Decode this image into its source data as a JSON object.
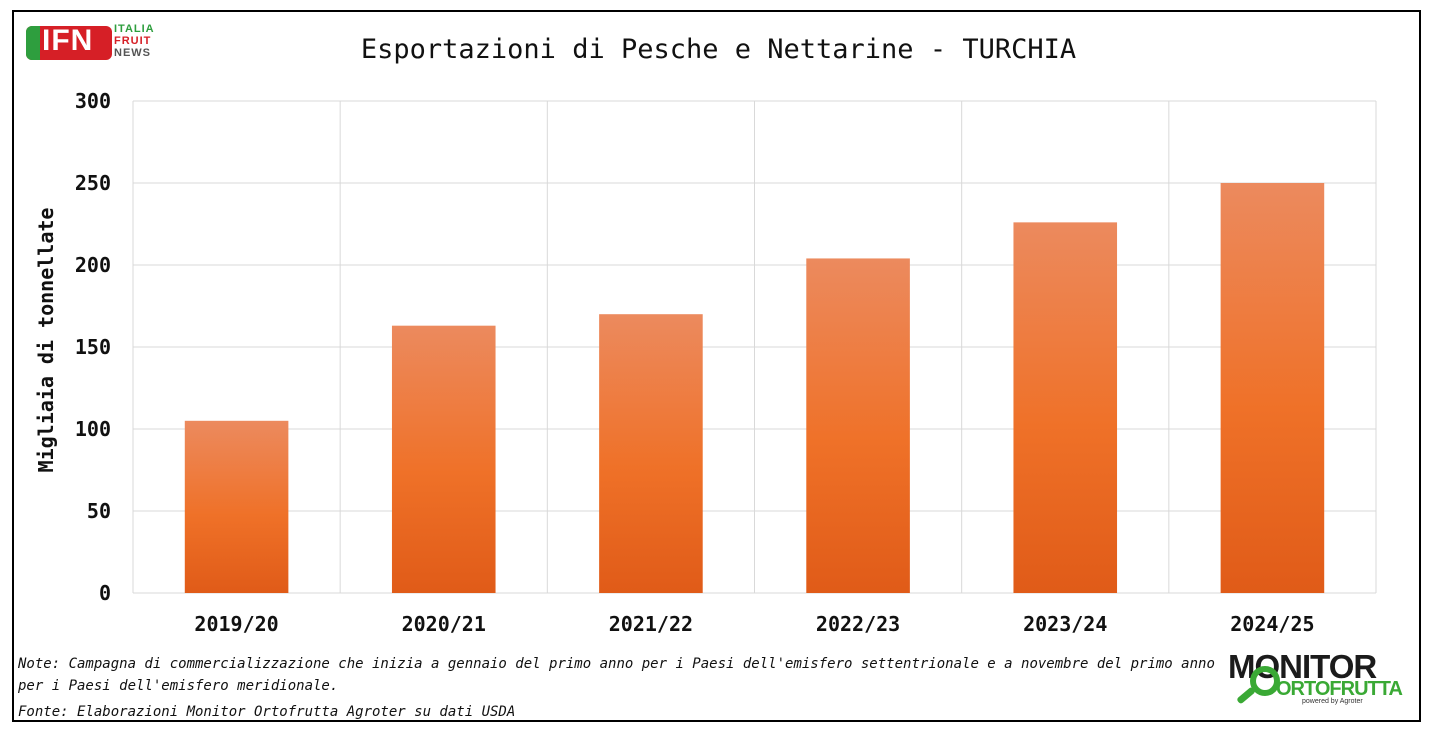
{
  "logo_left": {
    "main": "IFN",
    "line1": "ITALIA",
    "line2": "FRUIT",
    "line3": "NEWS"
  },
  "logo_right": {
    "line1": "MONITOR",
    "line2": "ORTOFRUTTA",
    "line3": "powered by Agroter"
  },
  "footer": {
    "note": "Note: Campagna di commercializzazione che inizia a gennaio del primo anno per i Paesi dell'emisfero settentrionale e a novembre del primo anno per i Paesi dell'emisfero meridionale.",
    "source": "Fonte: Elaborazioni Monitor Ortofrutta Agroter su dati USDA"
  },
  "colors": {
    "bar_top": "#ec8a5e",
    "bar_mid": "#ef7128",
    "bar_bottom": "#e05b18",
    "grid": "#d9d9d9",
    "frame": "#000000"
  },
  "chart_data": {
    "type": "bar",
    "title": "Esportazioni di Pesche e Nettarine - TURCHIA",
    "xlabel": "",
    "ylabel": "Migliaia di tonnellate",
    "categories": [
      "2019/20",
      "2020/21",
      "2021/22",
      "2022/23",
      "2023/24",
      "2024/25"
    ],
    "values": [
      105,
      163,
      170,
      204,
      226,
      250
    ],
    "ylim": [
      0,
      300
    ],
    "yticks": [
      0,
      50,
      100,
      150,
      200,
      250,
      300
    ],
    "grid": true,
    "legend": "none"
  }
}
